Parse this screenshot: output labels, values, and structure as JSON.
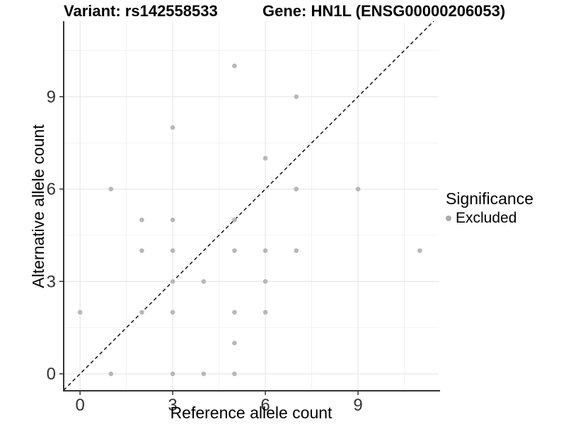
{
  "titles": {
    "variant": "Variant: rs142558533",
    "gene": "Gene: HN1L (ENSG00000206053)"
  },
  "legend": {
    "title": "Significance",
    "entries": [
      {
        "label": "Excluded",
        "swatch_color": "#aaaaaa",
        "marker": "circle"
      }
    ]
  },
  "chart_data": {
    "type": "scatter",
    "xlabel": "Reference allele count",
    "ylabel": "Alternative allele count",
    "x_ticks": [
      0,
      3,
      6,
      9
    ],
    "y_ticks": [
      0,
      3,
      6,
      9
    ],
    "x_minor_ticks": [
      1.5,
      4.5,
      7.5,
      10.5
    ],
    "y_minor_ticks": [
      1.5,
      4.5,
      7.5,
      10.5
    ],
    "xlim": [
      -0.53,
      11.61
    ],
    "ylim": [
      -0.55,
      11.45
    ],
    "grid": true,
    "legend_position": "right",
    "series": [
      {
        "name": "Excluded",
        "color": "#b7b7b7",
        "points": [
          [
            0,
            2
          ],
          [
            1,
            0
          ],
          [
            1,
            6
          ],
          [
            2,
            2
          ],
          [
            2,
            4
          ],
          [
            2,
            5
          ],
          [
            3,
            0
          ],
          [
            3,
            2
          ],
          [
            3,
            3
          ],
          [
            3,
            4
          ],
          [
            3,
            5
          ],
          [
            3,
            8
          ],
          [
            4,
            0
          ],
          [
            4,
            3
          ],
          [
            5,
            0
          ],
          [
            5,
            1
          ],
          [
            5,
            2
          ],
          [
            5,
            4
          ],
          [
            5,
            5
          ],
          [
            5,
            10
          ],
          [
            6,
            2
          ],
          [
            6,
            3
          ],
          [
            6,
            4
          ],
          [
            6,
            7
          ],
          [
            7,
            4
          ],
          [
            7,
            6
          ],
          [
            7,
            9
          ],
          [
            9,
            6
          ],
          [
            11,
            4
          ]
        ]
      }
    ],
    "reference_line": {
      "type": "identity",
      "style": "dashed",
      "color": "#000000"
    },
    "colors": {
      "major_grid": "#e6e6e6",
      "minor_grid": "#f1f1f1",
      "axis_line": "#333333",
      "tick_label": "#333333"
    }
  }
}
